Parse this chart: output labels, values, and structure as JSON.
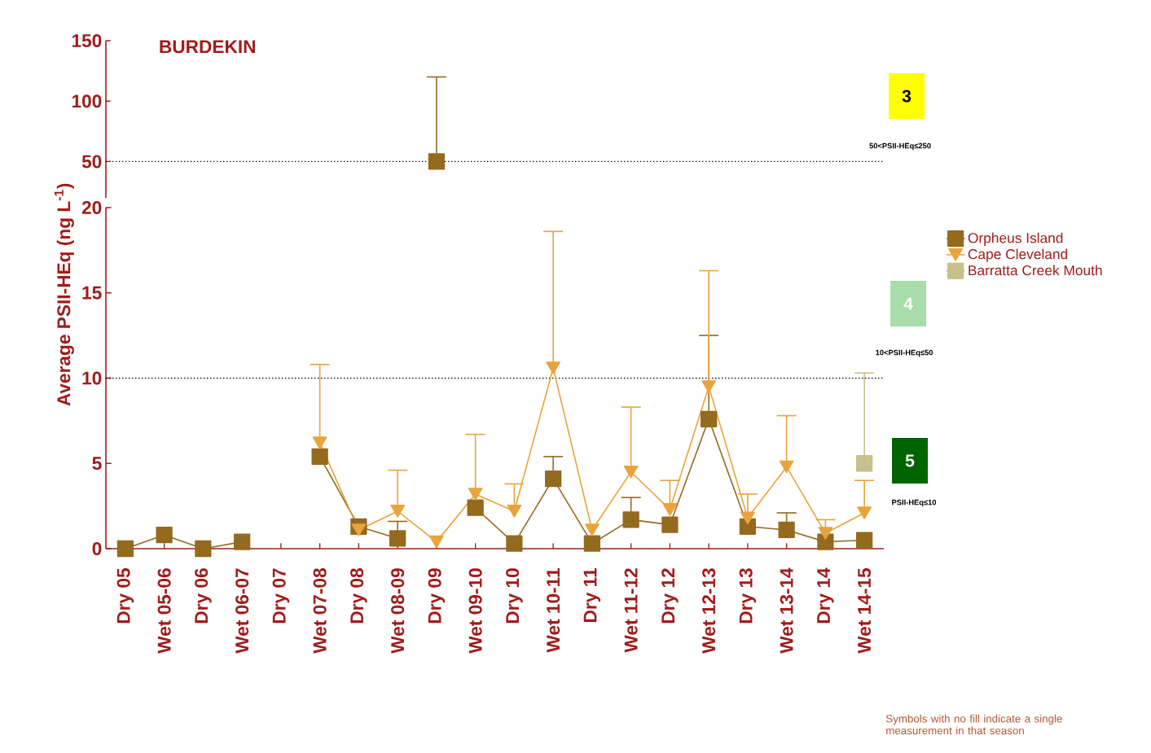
{
  "chart_data": [
    {
      "type": "line",
      "title": "BURDEKIN",
      "categories": [
        null,
        null,
        null,
        null,
        null,
        null,
        null,
        null,
        null,
        null,
        null,
        null,
        null,
        null,
        null,
        null,
        null,
        null,
        null,
        null
      ],
      "series": [
        {
          "color": "#946a1e",
          "marker": "square",
          "values": [
            null,
            null,
            null,
            null,
            null,
            null,
            null,
            null,
            50,
            null,
            null,
            null,
            null,
            null,
            null,
            null,
            null,
            null,
            null,
            null
          ],
          "errors": [
            null,
            null,
            null,
            null,
            null,
            null,
            null,
            null,
            [
              50,
              120
            ],
            null,
            null,
            null,
            null,
            null,
            null,
            null,
            null,
            null,
            null,
            null
          ]
        }
      ],
      "ylim": [
        20,
        150
      ],
      "yticks": [
        50,
        100,
        150
      ],
      "tick_labels": "y",
      "legend": false,
      "ref_lines": [
        {
          "axis": "y",
          "value": 50,
          "color": "#000000",
          "line_style": "dotted"
        }
      ]
    },
    {
      "type": "line",
      "ylabel": "Average PSII-HEq (ng L$^{-1}$)",
      "categories": [
        "Dry 05",
        "Wet 05-06",
        "Dry 06",
        "Wet 06-07",
        "Dry 07",
        "Wet 07-08",
        "Dry 08",
        "Wet 08-09",
        "Dry 09",
        "Wet 09-10",
        "Dry 10",
        "Wet 10-11",
        "Dry 11",
        "Wet 11-12",
        "Dry 12",
        "Wet 12-13",
        "Dry 13",
        "Wet 13-14",
        "Dry 14",
        "Wet 14-15"
      ],
      "series": [
        {
          "name": "Orpheus Island",
          "color": "#946a1e",
          "marker": "square",
          "values": [
            0,
            0.8,
            0,
            0.4,
            null,
            5.4,
            1.3,
            0.6,
            null,
            2.4,
            0.3,
            4.1,
            0.3,
            1.7,
            1.4,
            7.6,
            1.3,
            1.1,
            0.4,
            0.5
          ],
          "errors": [
            null,
            null,
            null,
            null,
            null,
            null,
            null,
            [
              0.6,
              1.6
            ],
            null,
            null,
            null,
            [
              4.1,
              5.4
            ],
            null,
            [
              1.7,
              3.0
            ],
            null,
            [
              7.6,
              12.5
            ],
            null,
            [
              1.1,
              2.1
            ],
            null,
            null
          ]
        },
        {
          "name": "Cape Cleveland",
          "color": "#e8a43c",
          "marker": "triangle",
          "values": [
            null,
            null,
            null,
            null,
            null,
            6.2,
            1.1,
            2.2,
            0.4,
            3.2,
            2.2,
            10.6,
            1.1,
            4.5,
            2.3,
            9.5,
            1.8,
            4.8,
            0.9,
            2.1
          ],
          "errors": [
            null,
            null,
            null,
            null,
            null,
            [
              6.2,
              10.8
            ],
            null,
            [
              2.2,
              4.6
            ],
            null,
            [
              3.2,
              6.7
            ],
            [
              2.2,
              3.8
            ],
            [
              10.6,
              18.6
            ],
            null,
            [
              4.5,
              8.3
            ],
            [
              2.3,
              4.0
            ],
            [
              9.5,
              16.3
            ],
            [
              1.8,
              3.2
            ],
            [
              4.8,
              7.8
            ],
            [
              0.9,
              1.7
            ],
            [
              2.1,
              4.0
            ]
          ]
        },
        {
          "name": "Barratta Creek Mouth",
          "color": "#c8c08c",
          "marker": "square",
          "values": [
            null,
            null,
            null,
            null,
            null,
            null,
            null,
            null,
            null,
            null,
            null,
            null,
            null,
            null,
            null,
            null,
            null,
            null,
            null,
            5.0
          ],
          "errors": [
            null,
            null,
            null,
            null,
            null,
            null,
            null,
            null,
            null,
            null,
            null,
            null,
            null,
            null,
            null,
            null,
            null,
            null,
            null,
            [
              5.0,
              10.3
            ]
          ]
        }
      ],
      "ylim": [
        0,
        20
      ],
      "yticks": [
        0,
        5,
        10,
        15,
        20
      ],
      "legend": "right",
      "ref_lines": [
        {
          "axis": "y",
          "value": 10,
          "color": "#000000",
          "line_style": "dotted"
        }
      ],
      "annotations": [
        "3",
        "50<PSII-HEq≤250",
        "4",
        "10<PSII-HEq≤50",
        "5",
        "PSII-HEq≤10",
        "Symbols with no fill indicate a single measurement in that season"
      ]
    }
  ]
}
